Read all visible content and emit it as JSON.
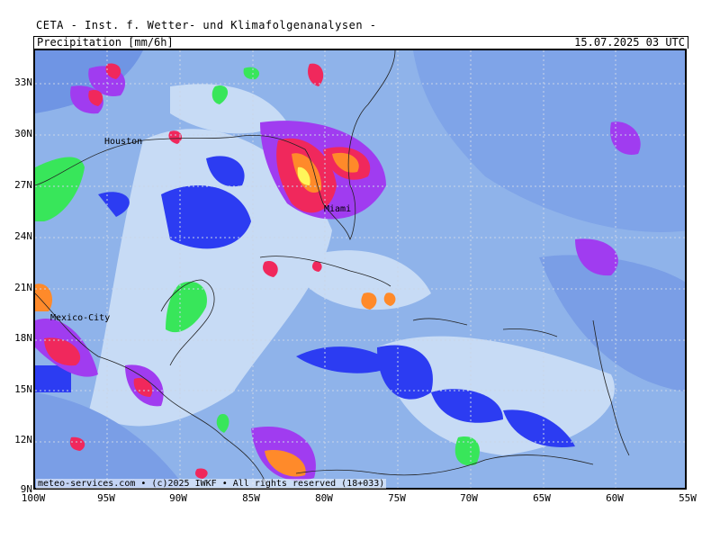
{
  "header": {
    "credit": "CETA - Inst. f. Wetter- und Klimafolgenanalysen -",
    "parameter": "Precipitation [mm/6h]",
    "valid_time": "15.07.2025 03 UTC"
  },
  "footer": {
    "copyright": "meteo-services.com • (c)2025 IWKF • All rights reserved (18+033)"
  },
  "map": {
    "region": "Gulf of Mexico and Caribbean",
    "lat_labels": [
      "33N",
      "30N",
      "27N",
      "24N",
      "21N",
      "18N",
      "15N",
      "12N",
      "9N"
    ],
    "lon_labels": [
      "100W",
      "95W",
      "90W",
      "85W",
      "80W",
      "75W",
      "70W",
      "65W",
      "60W",
      "55W"
    ],
    "cities": [
      {
        "name": "Houston"
      },
      {
        "name": "Miami"
      },
      {
        "name": "Mexico-City"
      }
    ],
    "colors": {
      "background_light": "#a9c6ee",
      "pale": "#d3e3f7",
      "light_blue": "#6f9ee4",
      "mid_blue": "#5d7de6",
      "blue_patch": "#2c3cf2",
      "green_patch": "#38e65a",
      "purple": "#a03cf0",
      "magenta": "#e040d0",
      "red": "#f0285c",
      "orange": "#ff8a2a",
      "yellow": "#fff65a"
    }
  }
}
